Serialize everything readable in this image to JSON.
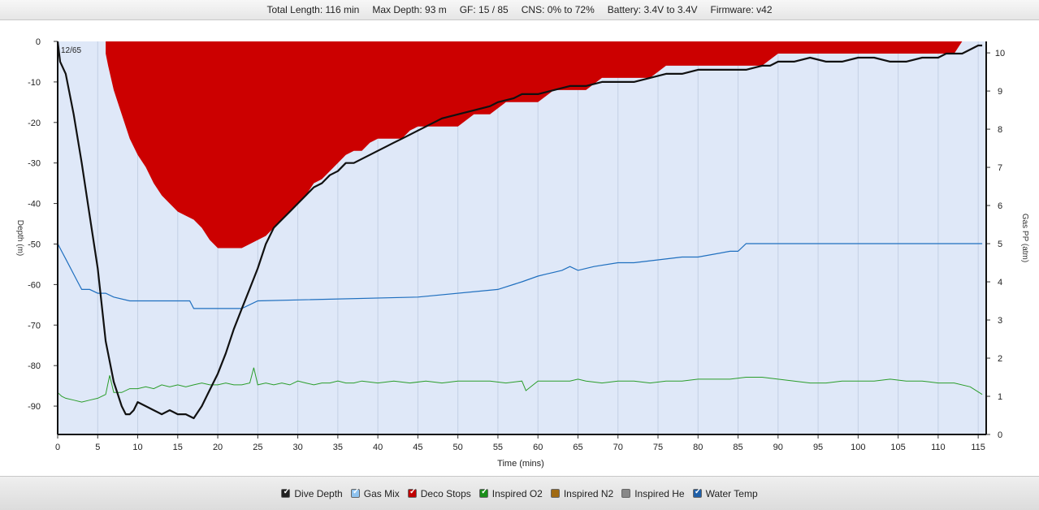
{
  "header": {
    "total_length": "Total Length: 116 min",
    "max_depth": "Max Depth: 93 m",
    "gf": "GF: 15 / 85",
    "cns": "CNS: 0% to 72%",
    "battery": "Battery: 3.4V to 3.4V",
    "firmware": "Firmware: v42"
  },
  "legend": [
    {
      "label": "Dive Depth",
      "color": "#222222",
      "checked": true
    },
    {
      "label": "Gas Mix",
      "color": "#8fc3ef",
      "checked": true
    },
    {
      "label": "Deco Stops",
      "color": "#c00000",
      "checked": true
    },
    {
      "label": "Inspired O2",
      "color": "#1a8f1a",
      "checked": true
    },
    {
      "label": "Inspired N2",
      "color": "#a06a12",
      "checked": false
    },
    {
      "label": "Inspired He",
      "color": "#888888",
      "checked": false
    },
    {
      "label": "Water Temp",
      "color": "#1f5fa8",
      "checked": true
    }
  ],
  "chart_data": {
    "type": "line",
    "xlabel": "Time (mins)",
    "ylabel": "Depth (m)",
    "y2label": "Gas PP (atm)",
    "annotation": "12/65",
    "xlim": [
      0,
      116
    ],
    "ylim": [
      -97,
      0
    ],
    "y2lim": [
      0,
      10.3
    ],
    "x_ticks": [
      0,
      5,
      10,
      15,
      20,
      25,
      30,
      35,
      40,
      45,
      50,
      55,
      60,
      65,
      70,
      75,
      80,
      85,
      90,
      95,
      100,
      105,
      110,
      115
    ],
    "y_ticks": [
      0,
      -10,
      -20,
      -30,
      -40,
      -50,
      -60,
      -70,
      -80,
      -90
    ],
    "y2_ticks": [
      0,
      1,
      2,
      3,
      4,
      5,
      6,
      7,
      8,
      9,
      10
    ],
    "colors": {
      "plot_bg": "#dfe8f8",
      "grid": "#c4d0e4",
      "depth": "#111111",
      "deco": "#cc0000",
      "o2": "#2a9d2a",
      "temp": "#1f6fbf"
    },
    "series": [
      {
        "name": "Dive Depth",
        "x": [
          0,
          0.3,
          1,
          2,
          3,
          4,
          5,
          5.5,
          6,
          7,
          8,
          8.5,
          9,
          9.5,
          10,
          11,
          12,
          13,
          14,
          15,
          16,
          17,
          18,
          19,
          20,
          21,
          22,
          23,
          24,
          25,
          26,
          27,
          28,
          29,
          30,
          31,
          32,
          33,
          34,
          35,
          36,
          37,
          38,
          39,
          40,
          41,
          42,
          43,
          44,
          45,
          47,
          48,
          50,
          52,
          54,
          55,
          57,
          58,
          60,
          62,
          64,
          66,
          68,
          70,
          72,
          74,
          76,
          78,
          80,
          82,
          84,
          86,
          88,
          89,
          90,
          92,
          94,
          96,
          98,
          100,
          102,
          104,
          106,
          108,
          110,
          111,
          112,
          113,
          114,
          115,
          115.5
        ],
        "y": [
          0,
          -5,
          -8,
          -18,
          -30,
          -43,
          -56,
          -65,
          -74,
          -84,
          -90,
          -92,
          -92,
          -91,
          -89,
          -90,
          -91,
          -92,
          -91,
          -92,
          -92,
          -93,
          -90,
          -86,
          -82,
          -77,
          -71,
          -66,
          -61,
          -56,
          -50,
          -46,
          -44,
          -42,
          -40,
          -38,
          -36,
          -35,
          -33,
          -32,
          -30,
          -30,
          -29,
          -28,
          -27,
          -26,
          -25,
          -24,
          -23,
          -22,
          -20,
          -19,
          -18,
          -17,
          -16,
          -15,
          -14,
          -13,
          -13,
          -12,
          -11,
          -11,
          -10,
          -10,
          -10,
          -9,
          -8,
          -8,
          -7,
          -7,
          -7,
          -7,
          -6,
          -6,
          -5,
          -5,
          -4,
          -5,
          -5,
          -4,
          -4,
          -5,
          -5,
          -4,
          -4,
          -3,
          -3,
          -3,
          -2,
          -1,
          -1
        ]
      },
      {
        "name": "Deco Stops",
        "x": [
          6,
          6.3,
          7,
          8,
          9,
          10,
          11,
          12,
          13,
          14,
          15,
          16,
          17,
          18,
          19,
          20,
          21,
          22,
          23,
          24,
          25,
          26,
          27,
          28,
          29,
          30,
          31,
          32,
          33,
          34,
          35,
          36,
          37,
          38,
          39,
          40,
          41,
          42,
          43,
          44,
          45,
          46,
          48,
          50,
          52,
          54,
          56,
          58,
          60,
          62,
          64,
          66,
          68,
          70,
          72,
          74,
          76,
          78,
          80,
          82,
          84,
          86,
          88,
          90,
          92,
          94,
          96,
          98,
          100,
          102,
          104,
          106,
          108,
          110,
          112,
          113
        ],
        "y": [
          -3,
          -6,
          -12,
          -18,
          -24,
          -28,
          -31,
          -35,
          -38,
          -40,
          -42,
          -43,
          -44,
          -46,
          -49,
          -51,
          -51,
          -51,
          -51,
          -50,
          -49,
          -48,
          -46,
          -44,
          -42,
          -40,
          -38,
          -35,
          -34,
          -32,
          -30,
          -28,
          -27,
          -27,
          -25,
          -24,
          -24,
          -24,
          -24,
          -22,
          -21,
          -21,
          -21,
          -21,
          -18,
          -18,
          -15,
          -15,
          -15,
          -12,
          -12,
          -12,
          -9,
          -9,
          -9,
          -9,
          -6,
          -6,
          -6,
          -6,
          -6,
          -6,
          -6,
          -3,
          -3,
          -3,
          -3,
          -3,
          -3,
          -3,
          -3,
          -3,
          -3,
          -3,
          -3,
          0
        ]
      },
      {
        "name": "Inspired O2",
        "x": [
          0,
          0.5,
          1,
          2,
          3,
          4,
          5,
          6,
          6.5,
          7,
          8,
          9,
          10,
          11,
          12,
          13,
          14,
          15,
          16,
          17,
          18,
          19,
          20,
          21,
          22,
          23,
          24,
          24.5,
          25,
          26,
          27,
          28,
          29,
          30,
          31,
          32,
          33,
          34,
          35,
          36,
          37,
          38,
          40,
          42,
          44,
          46,
          48,
          50,
          52,
          54,
          56,
          58,
          58.5,
          60,
          62,
          64,
          65,
          66,
          68,
          70,
          72,
          74,
          76,
          78,
          80,
          82,
          84,
          86,
          88,
          90,
          92,
          94,
          96,
          98,
          100,
          102,
          104,
          106,
          108,
          110,
          112,
          114,
          115.5
        ],
        "y": [
          1.1,
          1.0,
          0.95,
          0.9,
          0.85,
          0.9,
          0.95,
          1.05,
          1.55,
          1.1,
          1.1,
          1.2,
          1.2,
          1.25,
          1.2,
          1.3,
          1.25,
          1.3,
          1.25,
          1.3,
          1.35,
          1.3,
          1.3,
          1.35,
          1.3,
          1.3,
          1.35,
          1.75,
          1.3,
          1.35,
          1.3,
          1.35,
          1.3,
          1.4,
          1.35,
          1.3,
          1.35,
          1.35,
          1.4,
          1.35,
          1.35,
          1.4,
          1.35,
          1.4,
          1.35,
          1.4,
          1.35,
          1.4,
          1.4,
          1.4,
          1.35,
          1.4,
          1.15,
          1.4,
          1.4,
          1.4,
          1.45,
          1.4,
          1.35,
          1.4,
          1.4,
          1.35,
          1.4,
          1.4,
          1.45,
          1.45,
          1.45,
          1.5,
          1.5,
          1.45,
          1.4,
          1.35,
          1.35,
          1.4,
          1.4,
          1.4,
          1.45,
          1.4,
          1.4,
          1.35,
          1.35,
          1.25,
          1.05
        ]
      },
      {
        "name": "Water Temp",
        "x": [
          0,
          0.5,
          1,
          1.5,
          2,
          2.5,
          3,
          4,
          5,
          6,
          7,
          9,
          16.5,
          17,
          18,
          23,
          25,
          45,
          55,
          58,
          60,
          61,
          62,
          63,
          64,
          65,
          66,
          67,
          70,
          72,
          78,
          80,
          84,
          85,
          86,
          115.5
        ],
        "y": [
          5.0,
          4.8,
          4.6,
          4.4,
          4.2,
          4.0,
          3.8,
          3.8,
          3.7,
          3.7,
          3.6,
          3.5,
          3.5,
          3.3,
          3.3,
          3.3,
          3.5,
          3.6,
          3.8,
          4.0,
          4.15,
          4.2,
          4.25,
          4.3,
          4.4,
          4.3,
          4.35,
          4.4,
          4.5,
          4.5,
          4.65,
          4.65,
          4.8,
          4.8,
          5.0,
          5.0
        ]
      }
    ]
  }
}
